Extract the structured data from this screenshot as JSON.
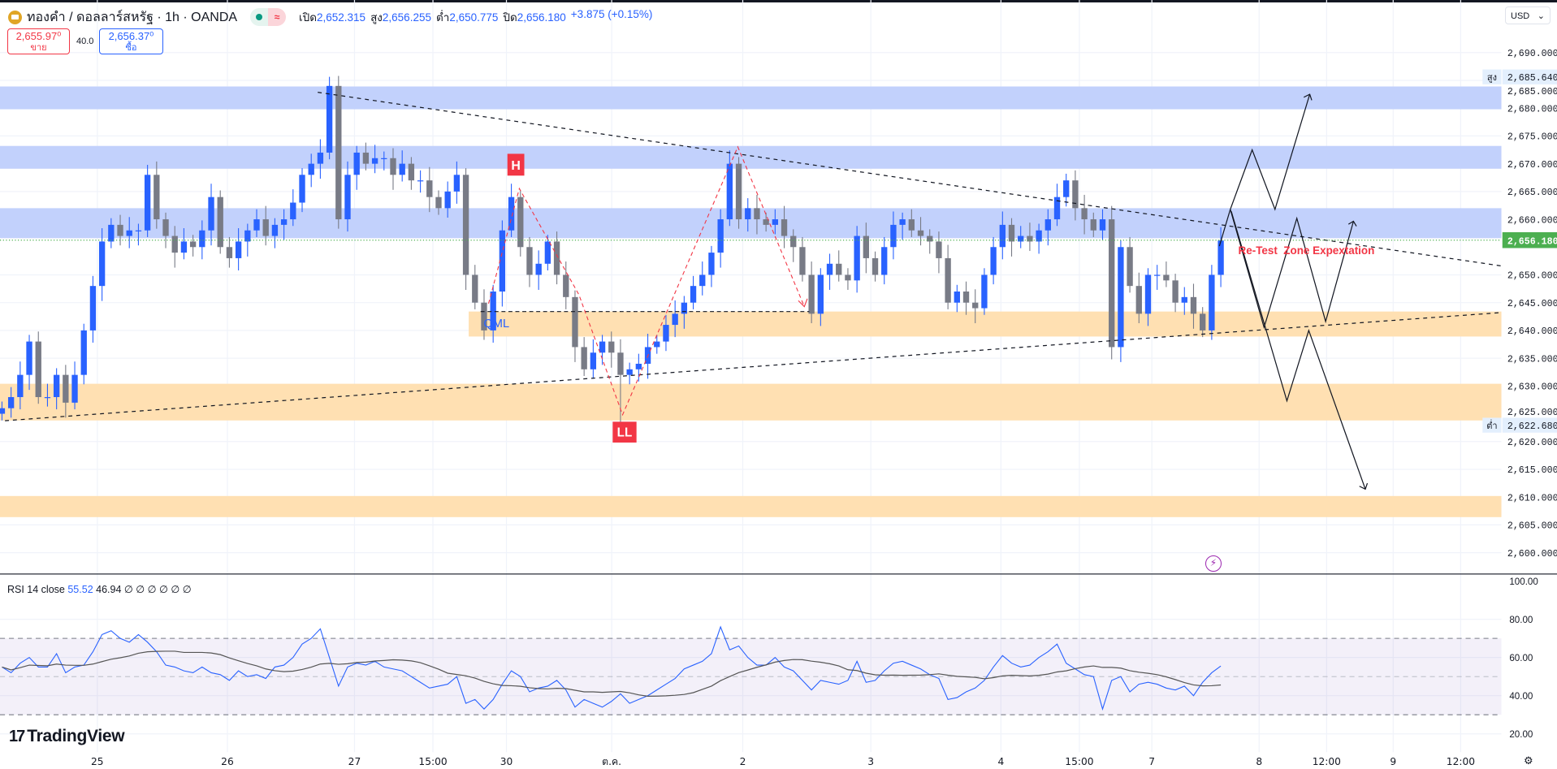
{
  "header": {
    "symbol_title": "ทองคำ / ดอลลาร์สหรัฐ · 1h · OANDA",
    "open_label": "เปิด",
    "open": "2,652.315",
    "high_label": "สูง",
    "high": "2,656.255",
    "low_label": "ต่ำ",
    "low": "2,650.775",
    "close_label": "ปิด",
    "close": "2,656.180",
    "change": "+3.875 (+0.15%)"
  },
  "trade": {
    "sell_price": "2,655.97⁰",
    "sell_label": "ขาย",
    "spread": "40.0",
    "buy_price": "2,656.37⁰",
    "buy_label": "ซื้อ"
  },
  "currency": "USD",
  "price_axis": {
    "ticks": [
      "2,690.000",
      "2,685.000",
      "2,680.000",
      "2,675.000",
      "2,670.000",
      "2,665.000",
      "2,660.000",
      "2,650.000",
      "2,645.000",
      "2,640.000",
      "2,635.000",
      "2,630.000",
      "2,625.000",
      "2,620.000",
      "2,615.000",
      "2,610.000",
      "2,605.000",
      "2,600.000"
    ],
    "tick_values": [
      2690,
      2685,
      2680,
      2675,
      2670,
      2665,
      2660,
      2650,
      2645,
      2640,
      2635,
      2630,
      2625,
      2620,
      2615,
      2610,
      2605,
      2600
    ],
    "high_tag": "สูง",
    "high_value": "2,685.640",
    "low_tag": "ต่ำ",
    "low_value": "2,622.680",
    "last_value": "2,656.180"
  },
  "time_axis": [
    "25",
    "26",
    "27",
    "15:00",
    "30",
    "ต.ค.",
    "2",
    "3",
    "4",
    "15:00",
    "7",
    "8",
    "12:00",
    "9",
    "12:00"
  ],
  "rsi": {
    "label": "RSI 14 close",
    "value": "55.52",
    "ma_value": "46.94",
    "extra": "∅ ∅ ∅ ∅ ∅ ∅",
    "ticks": [
      "100.00",
      "80.00",
      "60.00",
      "40.00",
      "20.00"
    ],
    "upper_band": 70,
    "middle": 50,
    "lower_band": 30
  },
  "annotations": {
    "h_label": "H",
    "ll_label": "LL",
    "qml_label": "QML",
    "retest_text": "Re-Test  Zone Expextation"
  },
  "colors": {
    "up": "#2962ff",
    "down": "#787b86",
    "supply_zone": "#c2d1fc",
    "demand_zone": "#ffe0b2",
    "label_red": "#f23645",
    "last_price": "#4caf50",
    "rsi_line": "#2962ff",
    "rsi_ma": "#555555"
  },
  "chart_data": {
    "type": "candlestick",
    "symbol": "XAUUSD",
    "timeframe": "1h",
    "ylim": [
      2597,
      2693
    ],
    "high": 2685.64,
    "low": 2622.68,
    "last": 2656.18,
    "zones": [
      {
        "kind": "supply",
        "from": 2679.8,
        "to": 2683.9
      },
      {
        "kind": "supply",
        "from": 2669.1,
        "to": 2673.2
      },
      {
        "kind": "supply",
        "from": 2656.6,
        "to": 2662.0
      },
      {
        "kind": "demand",
        "from": 2638.9,
        "to": 2643.4
      },
      {
        "kind": "demand",
        "from": 2623.8,
        "to": 2630.4
      },
      {
        "kind": "demand",
        "from": 2606.4,
        "to": 2610.2
      }
    ],
    "closes": [
      2626,
      2628,
      2632,
      2638,
      2628,
      2628,
      2632,
      2627,
      2632,
      2640,
      2648,
      2656,
      2659,
      2657,
      2658,
      2658,
      2668,
      2660,
      2657,
      2654,
      2656,
      2655,
      2658,
      2664,
      2655,
      2653,
      2656,
      2658,
      2660,
      2657,
      2659,
      2660,
      2663,
      2668,
      2670,
      2672,
      2684,
      2660,
      2668,
      2672,
      2670,
      2671,
      2671,
      2668,
      2670,
      2667,
      2667,
      2664,
      2662,
      2665,
      2668,
      2650,
      2645,
      2640,
      2647,
      2658,
      2664,
      2655,
      2650,
      2652,
      2656,
      2650,
      2646,
      2637,
      2633,
      2636,
      2638,
      2636,
      2632,
      2633,
      2634,
      2637,
      2638,
      2641,
      2643,
      2645,
      2648,
      2650,
      2654,
      2660,
      2670,
      2660,
      2662,
      2660,
      2659,
      2660,
      2657,
      2655,
      2650,
      2643,
      2650,
      2652,
      2650,
      2649,
      2657,
      2653,
      2650,
      2655,
      2659,
      2660,
      2658,
      2657,
      2656,
      2653,
      2645,
      2647,
      2645,
      2644,
      2650,
      2655,
      2659,
      2656,
      2657,
      2656,
      2658,
      2660,
      2664,
      2667,
      2662,
      2660,
      2658,
      2660,
      2637,
      2655,
      2648,
      2643,
      2650,
      2650,
      2649,
      2645,
      2646,
      2643,
      2640,
      2650,
      2656.18
    ],
    "rsi": [
      55,
      52,
      57,
      60,
      55,
      55,
      62,
      52,
      55,
      56,
      63,
      72,
      74,
      70,
      68,
      72,
      68,
      63,
      56,
      55,
      53,
      52,
      55,
      52,
      51,
      48,
      53,
      50,
      51,
      49,
      55,
      56,
      60,
      67,
      70,
      75,
      60,
      45,
      55,
      57,
      56,
      58,
      55,
      54,
      53,
      50,
      47,
      44,
      45,
      46,
      50,
      36,
      38,
      33,
      38,
      46,
      53,
      50,
      42,
      44,
      45,
      48,
      43,
      34,
      38,
      36,
      34,
      37,
      41,
      36,
      38,
      40,
      43,
      46,
      49,
      54,
      56,
      58,
      62,
      76,
      64,
      66,
      60,
      56,
      56,
      60,
      55,
      53,
      48,
      43,
      48,
      47,
      46,
      48,
      58,
      47,
      48,
      53,
      57,
      58,
      56,
      54,
      51,
      49,
      38,
      39,
      42,
      44,
      48,
      55,
      61,
      57,
      55,
      56,
      60,
      63,
      67,
      57,
      54,
      51,
      50,
      33,
      48,
      50,
      42,
      46,
      47,
      46,
      44,
      43,
      45,
      40,
      47,
      52,
      55.52
    ],
    "rsi_ylim": [
      10,
      104
    ]
  }
}
